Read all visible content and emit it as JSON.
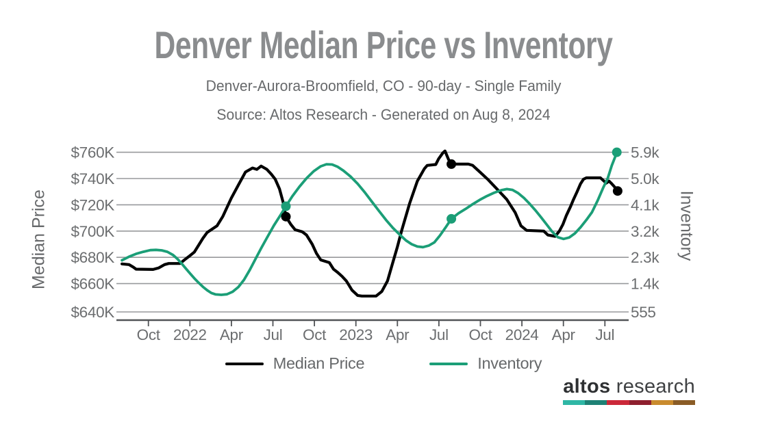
{
  "header": {
    "title": "Denver Median Price vs Inventory",
    "subtitle": "Denver-Aurora-Broomfield, CO - 90-day - Single Family",
    "source": "Source: Altos Research - Generated on Aug 8, 2024"
  },
  "chart_data": {
    "type": "line",
    "title": "Denver Median Price vs Inventory",
    "grid": true,
    "legend_position": "bottom-center",
    "x_axis": {
      "unit": "months since Aug 2021",
      "start_label": "Aug 2021 (month 0)",
      "tick_labels": [
        "Oct",
        "2022",
        "Apr",
        "Jul",
        "Oct",
        "2023",
        "Apr",
        "Jul",
        "Oct",
        "2024",
        "Apr",
        "Jul"
      ],
      "tick_months": [
        2,
        5,
        8,
        11,
        14,
        17,
        20,
        23,
        26,
        29,
        32,
        35
      ],
      "range_months": [
        0.1,
        36.3
      ]
    },
    "y_left": {
      "title": "Median Price",
      "tick_labels": [
        "$760K",
        "$740K",
        "$720K",
        "$700K",
        "$680K",
        "$660K",
        "$640K"
      ],
      "tick_values_usd": [
        760000,
        740000,
        720000,
        700000,
        680000,
        660000,
        640000
      ]
    },
    "y_right": {
      "title": "Inventory",
      "tick_labels": [
        "5.9k",
        "5.0k",
        "4.1k",
        "3.2k",
        "2.3k",
        "1.4k",
        "555"
      ],
      "tick_values": [
        5900,
        5000,
        4100,
        3200,
        2300,
        1400,
        555
      ]
    },
    "series": [
      {
        "name": "Median Price",
        "axis": "left",
        "color": "#000000",
        "width": 4.2,
        "unit": "USD thousands",
        "points": [
          [
            0.09,
            675
          ],
          [
            0.6,
            674.5
          ],
          [
            0.91,
            672.5
          ],
          [
            1.11,
            671
          ],
          [
            2.34,
            670.8
          ],
          [
            2.75,
            672
          ],
          [
            3.17,
            674.5
          ],
          [
            3.47,
            675.3
          ],
          [
            4.29,
            675.3
          ],
          [
            4.6,
            678
          ],
          [
            4.91,
            680.5
          ],
          [
            5.32,
            684
          ],
          [
            5.94,
            694.5
          ],
          [
            6.25,
            699
          ],
          [
            6.96,
            704
          ],
          [
            7.37,
            711
          ],
          [
            7.99,
            725
          ],
          [
            8.5,
            735
          ],
          [
            9.02,
            745
          ],
          [
            9.53,
            748
          ],
          [
            9.84,
            747
          ],
          [
            10.15,
            749.5
          ],
          [
            10.56,
            747
          ],
          [
            10.87,
            743.5
          ],
          [
            11.17,
            739.5
          ],
          [
            11.48,
            732
          ],
          [
            11.74,
            722
          ],
          [
            11.94,
            711
          ],
          [
            12.3,
            705
          ],
          [
            12.61,
            701
          ],
          [
            13.12,
            699.5
          ],
          [
            13.43,
            697
          ],
          [
            13.84,
            690
          ],
          [
            14.15,
            683
          ],
          [
            14.46,
            678
          ],
          [
            15.08,
            676
          ],
          [
            15.38,
            671
          ],
          [
            15.69,
            668.5
          ],
          [
            16.0,
            665.5
          ],
          [
            16.31,
            662
          ],
          [
            16.72,
            655
          ],
          [
            17.13,
            651
          ],
          [
            17.43,
            650.5
          ],
          [
            18.46,
            650.5
          ],
          [
            18.87,
            654
          ],
          [
            19.28,
            662
          ],
          [
            19.64,
            675
          ],
          [
            20.0,
            688
          ],
          [
            20.31,
            700.5
          ],
          [
            20.88,
            721
          ],
          [
            21.44,
            738
          ],
          [
            21.95,
            747.5
          ],
          [
            22.16,
            750
          ],
          [
            22.77,
            750.7
          ],
          [
            22.98,
            755
          ],
          [
            23.28,
            759.5
          ],
          [
            23.44,
            761
          ],
          [
            23.7,
            754.5
          ],
          [
            23.9,
            751
          ],
          [
            25.13,
            751
          ],
          [
            25.44,
            750
          ],
          [
            25.96,
            745
          ],
          [
            26.57,
            739
          ],
          [
            27.29,
            731
          ],
          [
            27.91,
            724
          ],
          [
            28.52,
            714
          ],
          [
            28.93,
            704
          ],
          [
            29.34,
            700.5
          ],
          [
            30.58,
            700
          ],
          [
            30.88,
            697
          ],
          [
            31.4,
            696
          ],
          [
            31.71,
            700
          ],
          [
            31.96,
            705
          ],
          [
            32.22,
            712
          ],
          [
            32.53,
            719
          ],
          [
            32.73,
            724
          ],
          [
            32.99,
            730
          ],
          [
            33.24,
            736
          ],
          [
            33.45,
            739.5
          ],
          [
            33.66,
            740.5
          ],
          [
            34.68,
            740.5
          ],
          [
            34.89,
            738.5
          ],
          [
            35.09,
            736.5
          ],
          [
            35.3,
            738
          ],
          [
            35.5,
            736
          ],
          [
            35.71,
            733.5
          ],
          [
            35.92,
            730.5
          ]
        ]
      },
      {
        "name": "Inventory",
        "axis": "right",
        "color": "#1b9e77",
        "width": 3.8,
        "unit": "homes for sale",
        "points": [
          [
            0.09,
            2200
          ],
          [
            0.6,
            2320
          ],
          [
            1.11,
            2420
          ],
          [
            1.63,
            2490
          ],
          [
            2.14,
            2545
          ],
          [
            2.55,
            2555
          ],
          [
            2.96,
            2540
          ],
          [
            3.37,
            2490
          ],
          [
            3.78,
            2380
          ],
          [
            4.09,
            2250
          ],
          [
            4.4,
            2090
          ],
          [
            4.7,
            1920
          ],
          [
            5.01,
            1750
          ],
          [
            5.32,
            1580
          ],
          [
            5.63,
            1430
          ],
          [
            5.94,
            1290
          ],
          [
            6.25,
            1170
          ],
          [
            6.55,
            1080
          ],
          [
            6.86,
            1030
          ],
          [
            7.27,
            1015
          ],
          [
            7.68,
            1035
          ],
          [
            8.09,
            1120
          ],
          [
            8.5,
            1280
          ],
          [
            8.91,
            1530
          ],
          [
            9.33,
            1870
          ],
          [
            9.74,
            2240
          ],
          [
            10.15,
            2610
          ],
          [
            10.56,
            2960
          ],
          [
            11.07,
            3390
          ],
          [
            11.58,
            3770
          ],
          [
            11.94,
            4050
          ],
          [
            12.4,
            4390
          ],
          [
            12.92,
            4720
          ],
          [
            13.43,
            5010
          ],
          [
            13.95,
            5250
          ],
          [
            14.46,
            5420
          ],
          [
            14.87,
            5490
          ],
          [
            15.28,
            5480
          ],
          [
            15.69,
            5400
          ],
          [
            16.1,
            5270
          ],
          [
            16.61,
            5070
          ],
          [
            17.13,
            4820
          ],
          [
            17.64,
            4530
          ],
          [
            18.15,
            4210
          ],
          [
            18.67,
            3890
          ],
          [
            19.18,
            3580
          ],
          [
            19.69,
            3300
          ],
          [
            20.21,
            3060
          ],
          [
            20.62,
            2880
          ],
          [
            21.03,
            2750
          ],
          [
            21.44,
            2670
          ],
          [
            21.85,
            2650
          ],
          [
            22.26,
            2700
          ],
          [
            22.67,
            2810
          ],
          [
            23.08,
            3050
          ],
          [
            23.49,
            3330
          ],
          [
            23.9,
            3620
          ],
          [
            24.42,
            3810
          ],
          [
            24.93,
            3960
          ],
          [
            25.44,
            4120
          ],
          [
            25.96,
            4270
          ],
          [
            26.47,
            4400
          ],
          [
            26.98,
            4510
          ],
          [
            27.5,
            4600
          ],
          [
            27.91,
            4640
          ],
          [
            28.32,
            4610
          ],
          [
            28.73,
            4500
          ],
          [
            29.14,
            4340
          ],
          [
            29.55,
            4140
          ],
          [
            29.96,
            3920
          ],
          [
            30.37,
            3680
          ],
          [
            30.78,
            3430
          ],
          [
            31.19,
            3180
          ],
          [
            31.6,
            2990
          ],
          [
            32.01,
            2930
          ],
          [
            32.42,
            2980
          ],
          [
            32.83,
            3120
          ],
          [
            33.24,
            3330
          ],
          [
            33.66,
            3580
          ],
          [
            34.07,
            3850
          ],
          [
            34.48,
            4250
          ],
          [
            34.89,
            4700
          ],
          [
            35.2,
            5000
          ],
          [
            35.5,
            5450
          ],
          [
            35.71,
            5700
          ],
          [
            35.86,
            5900
          ]
        ]
      }
    ],
    "markers": [
      {
        "series": "Median Price",
        "axis": "left",
        "color": "#000000",
        "points": [
          [
            11.94,
            711
          ],
          [
            23.9,
            751
          ],
          [
            35.92,
            730.5
          ]
        ]
      },
      {
        "series": "Inventory",
        "axis": "right",
        "color": "#1b9e77",
        "points": [
          [
            11.94,
            4050
          ],
          [
            23.9,
            3620
          ],
          [
            35.86,
            5900
          ]
        ]
      }
    ]
  },
  "legend": {
    "items": [
      {
        "label": "Median Price",
        "color": "#000000"
      },
      {
        "label": "Inventory",
        "color": "#1b9e77"
      }
    ]
  },
  "logo": {
    "brand_bold": "altos",
    "brand_light": "research",
    "bar_colors": [
      "#2fb7a5",
      "#1e8175",
      "#cb2839",
      "#8e1f2e",
      "#c98b2e",
      "#8a5c26"
    ]
  }
}
